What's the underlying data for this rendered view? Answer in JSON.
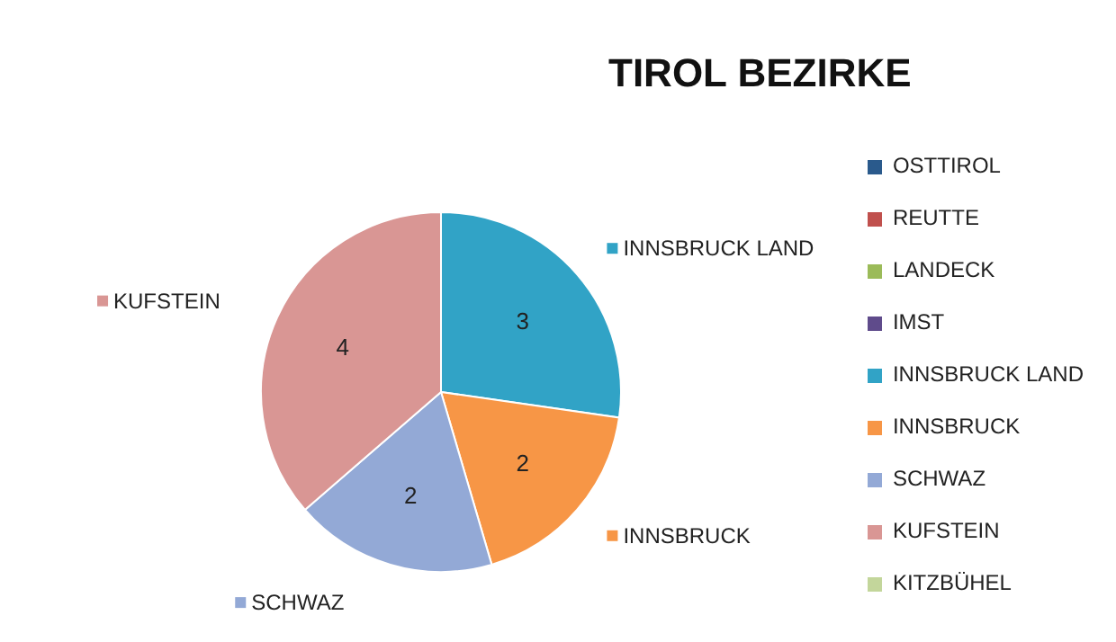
{
  "chart_data": {
    "type": "pie",
    "title": "TIROL BEZIRKE",
    "categories": [
      "OSTTIROL",
      "REUTTE",
      "LANDECK",
      "IMST",
      "INNSBRUCK LAND",
      "INNSBRUCK",
      "SCHWAZ",
      "KUFSTEIN",
      "KITZBÜHEL"
    ],
    "values": [
      0,
      0,
      0,
      0,
      3,
      2,
      2,
      4,
      0
    ],
    "colors": [
      "#2a5a8c",
      "#c0504d",
      "#9bbb59",
      "#5f4b8b",
      "#31a3c6",
      "#f79646",
      "#93a9d6",
      "#d99694",
      "#c3d69b"
    ],
    "data_labels": true,
    "legend": "right"
  }
}
